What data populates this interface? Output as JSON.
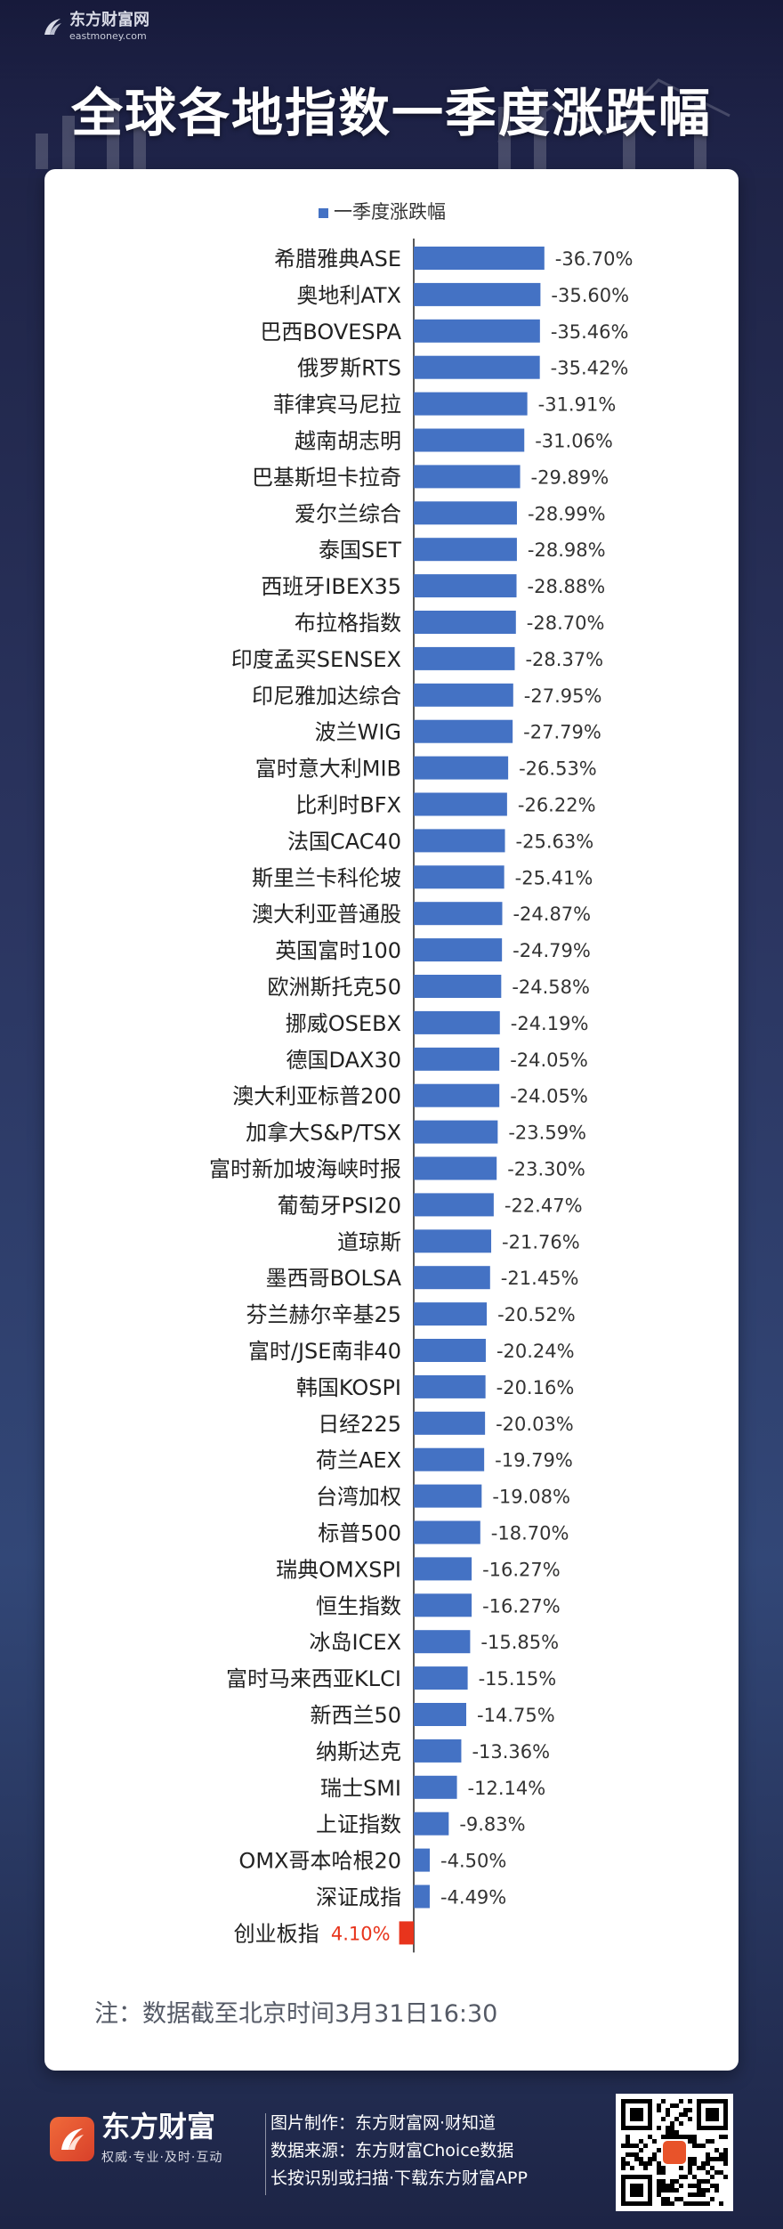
{
  "header": {
    "brand_cn": "东方财富网",
    "brand_en": "eastmoney.com",
    "title": "全球各地指数一季度涨跌幅"
  },
  "colors": {
    "bar_negative": "#4472c4",
    "bar_positive": "#e8341c",
    "label_positive": "#e8341c",
    "text_dark": "#333333"
  },
  "chart_data": {
    "type": "bar",
    "orientation": "horizontal",
    "legend": "一季度涨跌幅",
    "legend_position": "top",
    "categories": [
      "希腊雅典ASE",
      "奥地利ATX",
      "巴西BOVESPA",
      "俄罗斯RTS",
      "菲律宾马尼拉",
      "越南胡志明",
      "巴基斯坦卡拉奇",
      "爱尔兰综合",
      "泰国SET",
      "西班牙IBEX35",
      "布拉格指数",
      "印度孟买SENSEX",
      "印尼雅加达综合",
      "波兰WIG",
      "富时意大利MIB",
      "比利时BFX",
      "法国CAC40",
      "斯里兰卡科伦坡",
      "澳大利亚普通股",
      "英国富时100",
      "欧洲斯托克50",
      "挪威OSEBX",
      "德国DAX30",
      "澳大利亚标普200",
      "加拿大S&P/TSX",
      "富时新加坡海峡时报",
      "葡萄牙PSI20",
      "道琼斯",
      "墨西哥BOLSA",
      "芬兰赫尔辛基25",
      "富时/JSE南非40",
      "韩国KOSPI",
      "日经225",
      "荷兰AEX",
      "台湾加权",
      "标普500",
      "瑞典OMXSPI",
      "恒生指数",
      "冰岛ICEX",
      "富时马来西亚KLCI",
      "新西兰50",
      "纳斯达克",
      "瑞士SMI",
      "上证指数",
      "OMX哥本哈根20",
      "深证成指",
      "创业板指"
    ],
    "values": [
      -36.7,
      -35.6,
      -35.46,
      -35.42,
      -31.91,
      -31.06,
      -29.89,
      -28.99,
      -28.98,
      -28.88,
      -28.7,
      -28.37,
      -27.95,
      -27.79,
      -26.53,
      -26.22,
      -25.63,
      -25.41,
      -24.87,
      -24.79,
      -24.58,
      -24.19,
      -24.05,
      -24.05,
      -23.59,
      -23.3,
      -22.47,
      -21.76,
      -21.45,
      -20.52,
      -20.24,
      -20.16,
      -20.03,
      -19.79,
      -19.08,
      -18.7,
      -16.27,
      -16.27,
      -15.85,
      -15.15,
      -14.75,
      -13.36,
      -12.14,
      -9.83,
      -4.5,
      -4.49,
      4.1
    ],
    "labels": [
      "-36.70%",
      "-35.60%",
      "-35.46%",
      "-35.42%",
      "-31.91%",
      "-31.06%",
      "-29.89%",
      "-28.99%",
      "-28.98%",
      "-28.88%",
      "-28.70%",
      "-28.37%",
      "-27.95%",
      "-27.79%",
      "-26.53%",
      "-26.22%",
      "-25.63%",
      "-25.41%",
      "-24.87%",
      "-24.79%",
      "-24.58%",
      "-24.19%",
      "-24.05%",
      "-24.05%",
      "-23.59%",
      "-23.30%",
      "-22.47%",
      "-21.76%",
      "-21.45%",
      "-20.52%",
      "-20.24%",
      "-20.16%",
      "-20.03%",
      "-19.79%",
      "-19.08%",
      "-18.70%",
      "-16.27%",
      "-16.27%",
      "-15.85%",
      "-15.15%",
      "-14.75%",
      "-13.36%",
      "-12.14%",
      "-9.83%",
      "-4.50%",
      "-4.49%",
      "4.10%"
    ],
    "unit": "%"
  },
  "note": "注：数据截至北京时间3月31日16:30",
  "footer": {
    "brand_name": "东方财富",
    "slogan": "权威·专业·及时·互动",
    "credit_1": "图片制作：东方财富网·财知道",
    "credit_2": "数据来源：东方财富Choice数据",
    "credit_3": "长按识别或扫描·下载东方财富APP",
    "qr_icon": "qr-code-icon"
  }
}
